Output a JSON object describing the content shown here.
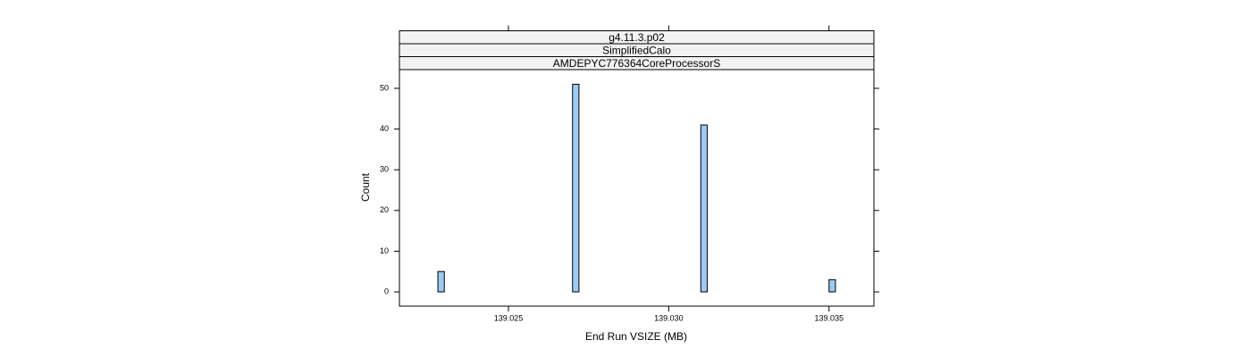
{
  "chart_data": {
    "type": "histogram",
    "strips": [
      "g4.11.3.p02",
      "SimplifiedCalo",
      "AMDEPYC776364CoreProcessorS"
    ],
    "xlabel": "End Run VSIZE (MB)",
    "ylabel": "Count",
    "bins": [
      139.0224,
      139.0226,
      139.0228,
      139.023,
      139.0232,
      139.0234,
      139.0236,
      139.0238,
      139.024,
      139.0242,
      139.0244,
      139.0246,
      139.0248,
      139.025,
      139.0252,
      139.0254,
      139.0256,
      139.0258,
      139.026,
      139.0262,
      139.0264,
      139.0266,
      139.0268,
      139.027,
      139.0272,
      139.0274,
      139.0276,
      139.0278,
      139.028,
      139.0282,
      139.0284,
      139.0286,
      139.0288,
      139.029,
      139.0292,
      139.0294,
      139.0296,
      139.0298,
      139.03,
      139.0302,
      139.0304,
      139.0306,
      139.0308,
      139.031,
      139.0312,
      139.0314,
      139.0316,
      139.0318,
      139.032,
      139.0322,
      139.0324,
      139.0326,
      139.0328,
      139.033,
      139.0332,
      139.0334,
      139.0336,
      139.0338,
      139.034,
      139.0342,
      139.0344,
      139.0346,
      139.0348,
      139.035,
      139.0352,
      139.0354,
      139.0356
    ],
    "values": [
      0,
      0,
      5,
      0,
      0,
      0,
      0,
      0,
      0,
      0,
      0,
      0,
      0,
      0,
      0,
      0,
      0,
      0,
      0,
      0,
      0,
      0,
      0,
      51,
      0,
      0,
      0,
      0,
      0,
      0,
      0,
      0,
      0,
      0,
      0,
      0,
      0,
      0,
      0,
      0,
      0,
      0,
      0,
      41,
      0,
      0,
      0,
      0,
      0,
      0,
      0,
      0,
      0,
      0,
      0,
      0,
      0,
      0,
      0,
      0,
      0,
      0,
      0,
      3,
      0,
      0
    ],
    "color": "#9ccaf7",
    "xlim": [
      139.0216,
      139.0364
    ],
    "xticks": [
      139.025,
      {
        "value": 139.03,
        "label": "139.030"
      },
      139.035
    ],
    "ylim": [
      -3.5,
      54.6
    ],
    "yticks": [
      0,
      10,
      20,
      30,
      40,
      50
    ]
  }
}
